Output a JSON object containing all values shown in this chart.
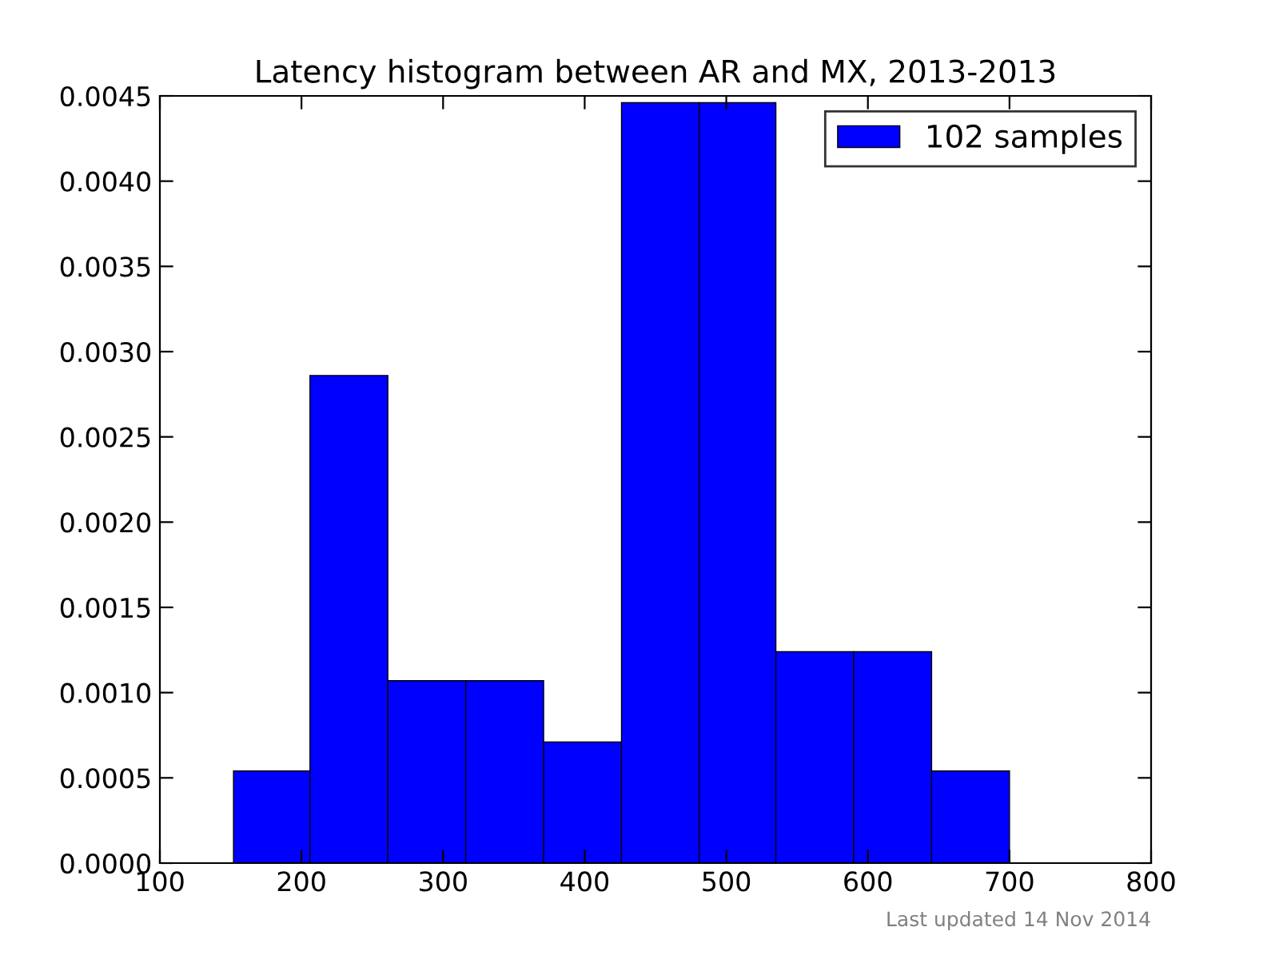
{
  "chart_data": {
    "type": "histogram",
    "title": "Latency histogram between AR and MX, 2013-2013",
    "bins": [
      152,
      206,
      261,
      316,
      371,
      426,
      481,
      535,
      590,
      645,
      700
    ],
    "series": [
      {
        "name": "102 samples",
        "color": "#0000ff",
        "values": [
          0.00054,
          0.00286,
          0.00107,
          0.00107,
          0.00071,
          0.00446,
          0.00446,
          0.00124,
          0.00124,
          0.00054
        ]
      }
    ],
    "xlim": [
      100,
      800
    ],
    "xticks": [
      100,
      200,
      300,
      400,
      500,
      600,
      700,
      800
    ],
    "ylim": [
      0,
      0.0045
    ],
    "yticks": [
      {
        "value": 0,
        "label": "0.0000"
      },
      {
        "value": 0.0005,
        "label": "0.0005"
      },
      {
        "value": 0.001,
        "label": "0.0010"
      },
      {
        "value": 0.0015,
        "label": "0.0015"
      },
      {
        "value": 0.002,
        "label": "0.0020"
      },
      {
        "value": 0.0025,
        "label": "0.0025"
      },
      {
        "value": 0.003,
        "label": "0.0030"
      },
      {
        "value": 0.0035,
        "label": "0.0035"
      },
      {
        "value": 0.004,
        "label": "0.0040"
      },
      {
        "value": 0.0045,
        "label": "0.0045"
      }
    ],
    "grid": false,
    "legend": "top right",
    "annotations": [
      "Last updated 14 Nov 2014"
    ]
  }
}
